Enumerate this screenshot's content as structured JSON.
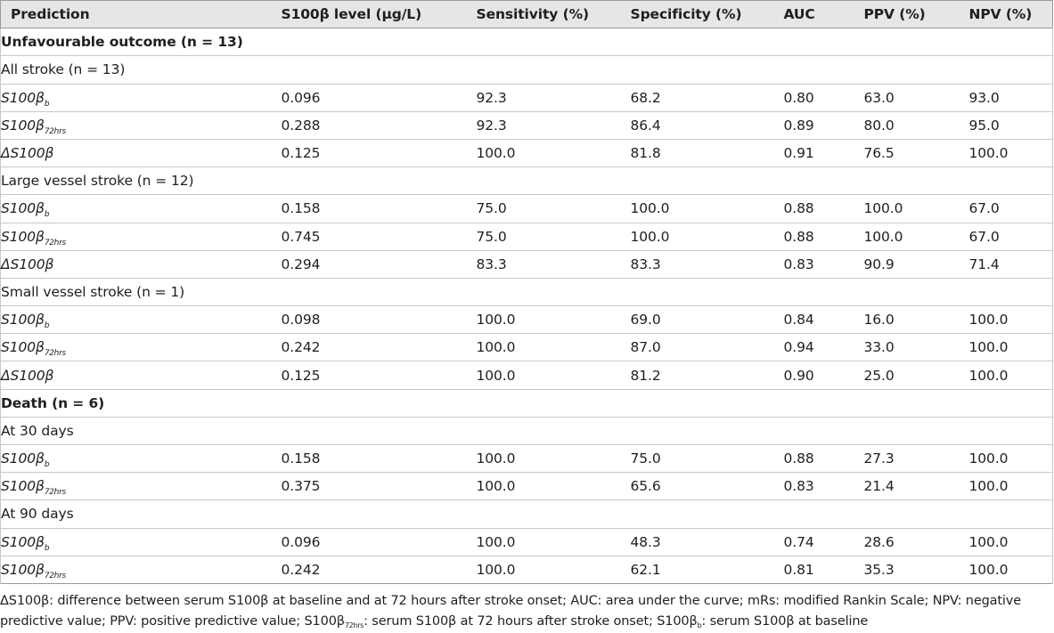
{
  "headers": [
    "Prediction",
    "S100β level (µg/L)",
    "Sensitivity (%)",
    "Specificity (%)",
    "AUC",
    "PPV (%)",
    "NPV (%)"
  ],
  "rows": [
    {
      "kind": "section",
      "label": "Unfavourable outcome (n = 13)"
    },
    {
      "kind": "subsection",
      "label": "All stroke (n = 13)"
    },
    {
      "kind": "measure",
      "label": "S100β",
      "sub": "b",
      "values": [
        "0.096",
        "92.3",
        "68.2",
        "0.80",
        "63.0",
        "93.0"
      ]
    },
    {
      "kind": "measure",
      "label": "S100β",
      "sub": "72hrs",
      "values": [
        "0.288",
        "92.3",
        "86.4",
        "0.89",
        "80.0",
        "95.0"
      ]
    },
    {
      "kind": "measure",
      "label": "ΔS100β",
      "sub": "",
      "values": [
        "0.125",
        "100.0",
        "81.8",
        "0.91",
        "76.5",
        "100.0"
      ]
    },
    {
      "kind": "subsection",
      "label": "Large vessel stroke (n = 12)"
    },
    {
      "kind": "measure",
      "label": "S100β",
      "sub": "b",
      "values": [
        "0.158",
        "75.0",
        "100.0",
        "0.88",
        "100.0",
        "67.0"
      ]
    },
    {
      "kind": "measure",
      "label": "S100β",
      "sub": "72hrs",
      "values": [
        "0.745",
        "75.0",
        "100.0",
        "0.88",
        "100.0",
        "67.0"
      ]
    },
    {
      "kind": "measure",
      "label": "ΔS100β",
      "sub": "",
      "values": [
        "0.294",
        "83.3",
        "83.3",
        "0.83",
        "90.9",
        "71.4"
      ]
    },
    {
      "kind": "subsection",
      "label": "Small vessel stroke (n = 1)"
    },
    {
      "kind": "measure",
      "label": "S100β",
      "sub": "b",
      "values": [
        "0.098",
        "100.0",
        "69.0",
        "0.84",
        "16.0",
        "100.0"
      ]
    },
    {
      "kind": "measure",
      "label": "S100β",
      "sub": "72hrs",
      "values": [
        "0.242",
        "100.0",
        "87.0",
        "0.94",
        "33.0",
        "100.0"
      ]
    },
    {
      "kind": "measure",
      "label": "ΔS100β",
      "sub": "",
      "values": [
        "0.125",
        "100.0",
        "81.2",
        "0.90",
        "25.0",
        "100.0"
      ]
    },
    {
      "kind": "section",
      "label": "Death (n = 6)"
    },
    {
      "kind": "subsection",
      "label": "At 30 days"
    },
    {
      "kind": "measure",
      "label": "S100β",
      "sub": "b",
      "values": [
        "0.158",
        "100.0",
        "75.0",
        "0.88",
        "27.3",
        "100.0"
      ]
    },
    {
      "kind": "measure",
      "label": "S100β",
      "sub": "72hrs",
      "values": [
        "0.375",
        "100.0",
        "65.6",
        "0.83",
        "21.4",
        "100.0"
      ]
    },
    {
      "kind": "subsection",
      "label": "At 90 days"
    },
    {
      "kind": "measure",
      "label": "S100β",
      "sub": "b",
      "values": [
        "0.096",
        "100.0",
        "48.3",
        "0.74",
        "28.6",
        "100.0"
      ]
    },
    {
      "kind": "measure",
      "label": "S100β",
      "sub": "72hrs",
      "values": [
        "0.242",
        "100.0",
        "62.1",
        "0.81",
        "35.3",
        "100.0"
      ]
    }
  ],
  "footnote": {
    "part1": "ΔS100β: difference between serum S100β at baseline and at 72 hours after stroke onset; AUC: area under the curve; mRs: modified Rankin Scale; NPV: negative",
    "part2a": "predictive value; PPV: positive predictive value; S100β",
    "sub1": "72hrs",
    "part2b": ": serum S100β at 72 hours after stroke onset; S100β",
    "sub2": "b",
    "part2c": ": serum S100β at baseline"
  }
}
